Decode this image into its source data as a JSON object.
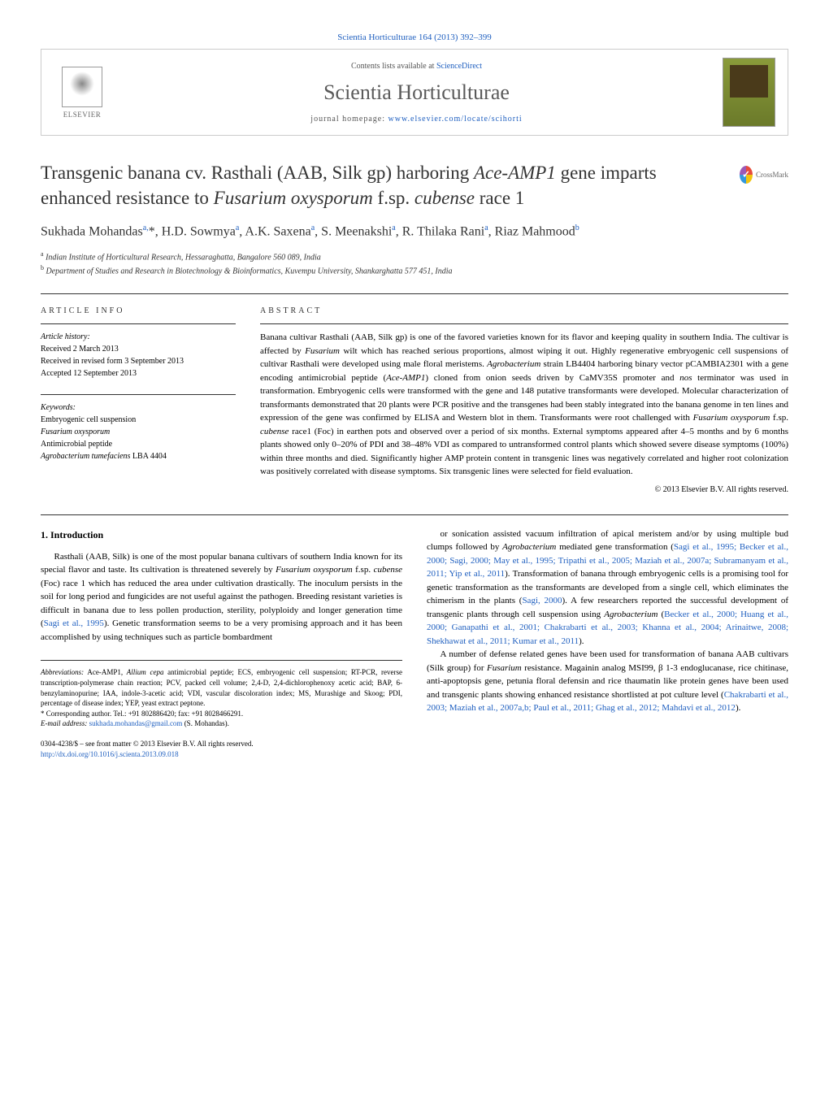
{
  "journal_ref": {
    "journal": "Scientia Horticulturae",
    "citation": "164 (2013) 392–399"
  },
  "header": {
    "contents_text": "Contents lists available at",
    "contents_link": "ScienceDirect",
    "journal_name": "Scientia Horticulturae",
    "homepage_label": "journal homepage:",
    "homepage_url": "www.elsevier.com/locate/scihorti",
    "publisher": "ELSEVIER"
  },
  "crossmark_label": "CrossMark",
  "title": "Transgenic banana cv. Rasthali (AAB, Silk gp) harboring <em>Ace-AMP1</em> gene imparts enhanced resistance to <em>Fusarium oxysporum</em> f.sp. <em>cubense</em> race 1",
  "authors_html": "Sukhada Mohandas<sup>a,</sup>*, H.D. Sowmya<sup>a</sup>, A.K. Saxena<sup>a</sup>, S. Meenakshi<sup>a</sup>, R. Thilaka Rani<sup>a</sup>, Riaz Mahmood<sup>b</sup>",
  "affiliations": [
    {
      "sup": "a",
      "text": "Indian Institute of Horticultural Research, Hessaraghatta, Bangalore 560 089, India"
    },
    {
      "sup": "b",
      "text": "Department of Studies and Research in Biotechnology & Bioinformatics, Kuvempu University, Shankarghatta 577 451, India"
    }
  ],
  "article_info": {
    "heading": "ARTICLE INFO",
    "history_label": "Article history:",
    "history": [
      "Received 2 March 2013",
      "Received in revised form 3 September 2013",
      "Accepted 12 September 2013"
    ],
    "keywords_label": "Keywords:",
    "keywords": [
      "Embryogenic cell suspension",
      "<em>Fusarium oxysporum</em>",
      "Antimicrobial peptide",
      "<em>Agrobacterium tumefaciens</em> LBA 4404"
    ]
  },
  "abstract": {
    "heading": "ABSTRACT",
    "text": "Banana cultivar Rasthali (AAB, Silk gp) is one of the favored varieties known for its flavor and keeping quality in southern India. The cultivar is affected by <em>Fusarium</em> wilt which has reached serious proportions, almost wiping it out. Highly regenerative embryogenic cell suspensions of cultivar Rasthali were developed using male floral meristems. <em>Agrobacterium</em> strain LB4404 harboring binary vector pCAMBIA2301 with a gene encoding antimicrobial peptide (<em>Ace-AMP1</em>) cloned from onion seeds driven by CaMV35S promoter and <em>nos</em> terminator was used in transformation. Embryogenic cells were transformed with the gene and 148 putative transformants were developed. Molecular characterization of transformants demonstrated that 20 plants were PCR positive and the transgenes had been stably integrated into the banana genome in ten lines and expression of the gene was confirmed by ELISA and Western blot in them. Transformants were root challenged with <em>Fusarium oxysporum</em> f.sp. <em>cubense</em> race1 (Foc) in earthen pots and observed over a period of six months. External symptoms appeared after 4–5 months and by 6 months plants showed only 0–20% of PDI and 38–48% VDI as compared to untransformed control plants which showed severe disease symptoms (100%) within three months and died. Significantly higher AMP protein content in transgenic lines was negatively correlated and higher root colonization was positively correlated with disease symptoms. Six transgenic lines were selected for field evaluation.",
    "copyright": "© 2013 Elsevier B.V. All rights reserved."
  },
  "intro": {
    "heading": "1. Introduction",
    "para1": "Rasthali (AAB, Silk) is one of the most popular banana cultivars of southern India known for its special flavor and taste. Its cultivation is threatened severely by <em>Fusarium oxysporum</em> f.sp. <em>cubense</em> (Foc) race 1 which has reduced the area under cultivation drastically. The inoculum persists in the soil for long period and fungicides are not useful against the pathogen. Breeding resistant varieties is difficult in banana due to less pollen production, sterility, polyploidy and longer generation time (<a href=\"#\">Sagi et al., 1995</a>). Genetic transformation seems to be a very promising approach and it has been accomplished by using techniques such as particle bombardment",
    "para2": "or sonication assisted vacuum infiltration of apical meristem and/or by using multiple bud clumps followed by <em>Agrobacterium</em> mediated gene transformation (<a href=\"#\">Sagi et al., 1995; Becker et al., 2000; Sagi, 2000; May et al., 1995; Tripathi et al., 2005; Maziah et al., 2007a; Subramanyam et al., 2011; Yip et al., 2011</a>). Transformation of banana through embryogenic cells is a promising tool for genetic transformation as the transformants are developed from a single cell, which eliminates the chimerism in the plants (<a href=\"#\">Sagi, 2000</a>). A few researchers reported the successful development of transgenic plants through cell suspension using <em>Agrobacterium</em> (<a href=\"#\">Becker et al., 2000; Huang et al., 2000; Ganapathi et al., 2001; Chakrabarti et al., 2003; Khanna et al., 2004; Arinaitwe, 2008; Shekhawat et al., 2011; Kumar et al., 2011</a>).",
    "para3": "A number of defense related genes have been used for transformation of banana AAB cultivars (Silk group) for <em>Fusarium</em> resistance. Magainin analog MSI99, β 1-3 endoglucanase, rice chitinase, anti-apoptopsis gene, petunia floral defensin and rice thaumatin like protein genes have been used and transgenic plants showing enhanced resistance shortlisted at pot culture level (<a href=\"#\">Chakrabarti et al., 2003; Maziah et al., 2007a,b; Paul et al., 2011; Ghag et al., 2012; Mahdavi et al., 2012</a>)."
  },
  "footnotes": {
    "abbreviations_label": "Abbreviations:",
    "abbreviations": "Ace-AMP1, <em>Allium cepa</em> antimicrobial peptide; ECS, embryogenic cell suspension; RT-PCR, reverse transcription-polymerase chain reaction; PCV, packed cell volume; 2,4-D, 2,4-dichlorophenoxy acetic acid; BAP, 6-benzylaminopurine; IAA, indole-3-acetic acid; VDI, vascular discoloration index; MS, Murashige and Skoog; PDI, percentage of disease index; YEP, yeast extract peptone.",
    "corresponding_label": "* Corresponding author.",
    "corresponding": "Tel.: +91 802886420; fax: +91 8028466291.",
    "email_label": "E-mail address:",
    "email": "sukhada.mohandas@gmail.com",
    "email_suffix": "(S. Mohandas)."
  },
  "footer": {
    "issn": "0304-4238/$ – see front matter © 2013 Elsevier B.V. All rights reserved.",
    "doi": "http://dx.doi.org/10.1016/j.scienta.2013.09.018"
  },
  "colors": {
    "link": "#2060c0",
    "text": "#000000",
    "muted": "#555555",
    "heading": "#333333"
  },
  "typography": {
    "body_fontsize": 11,
    "title_fontsize": 23,
    "journal_name_fontsize": 26,
    "authors_fontsize": 16,
    "small_fontsize": 10,
    "footnote_fontsize": 9
  }
}
